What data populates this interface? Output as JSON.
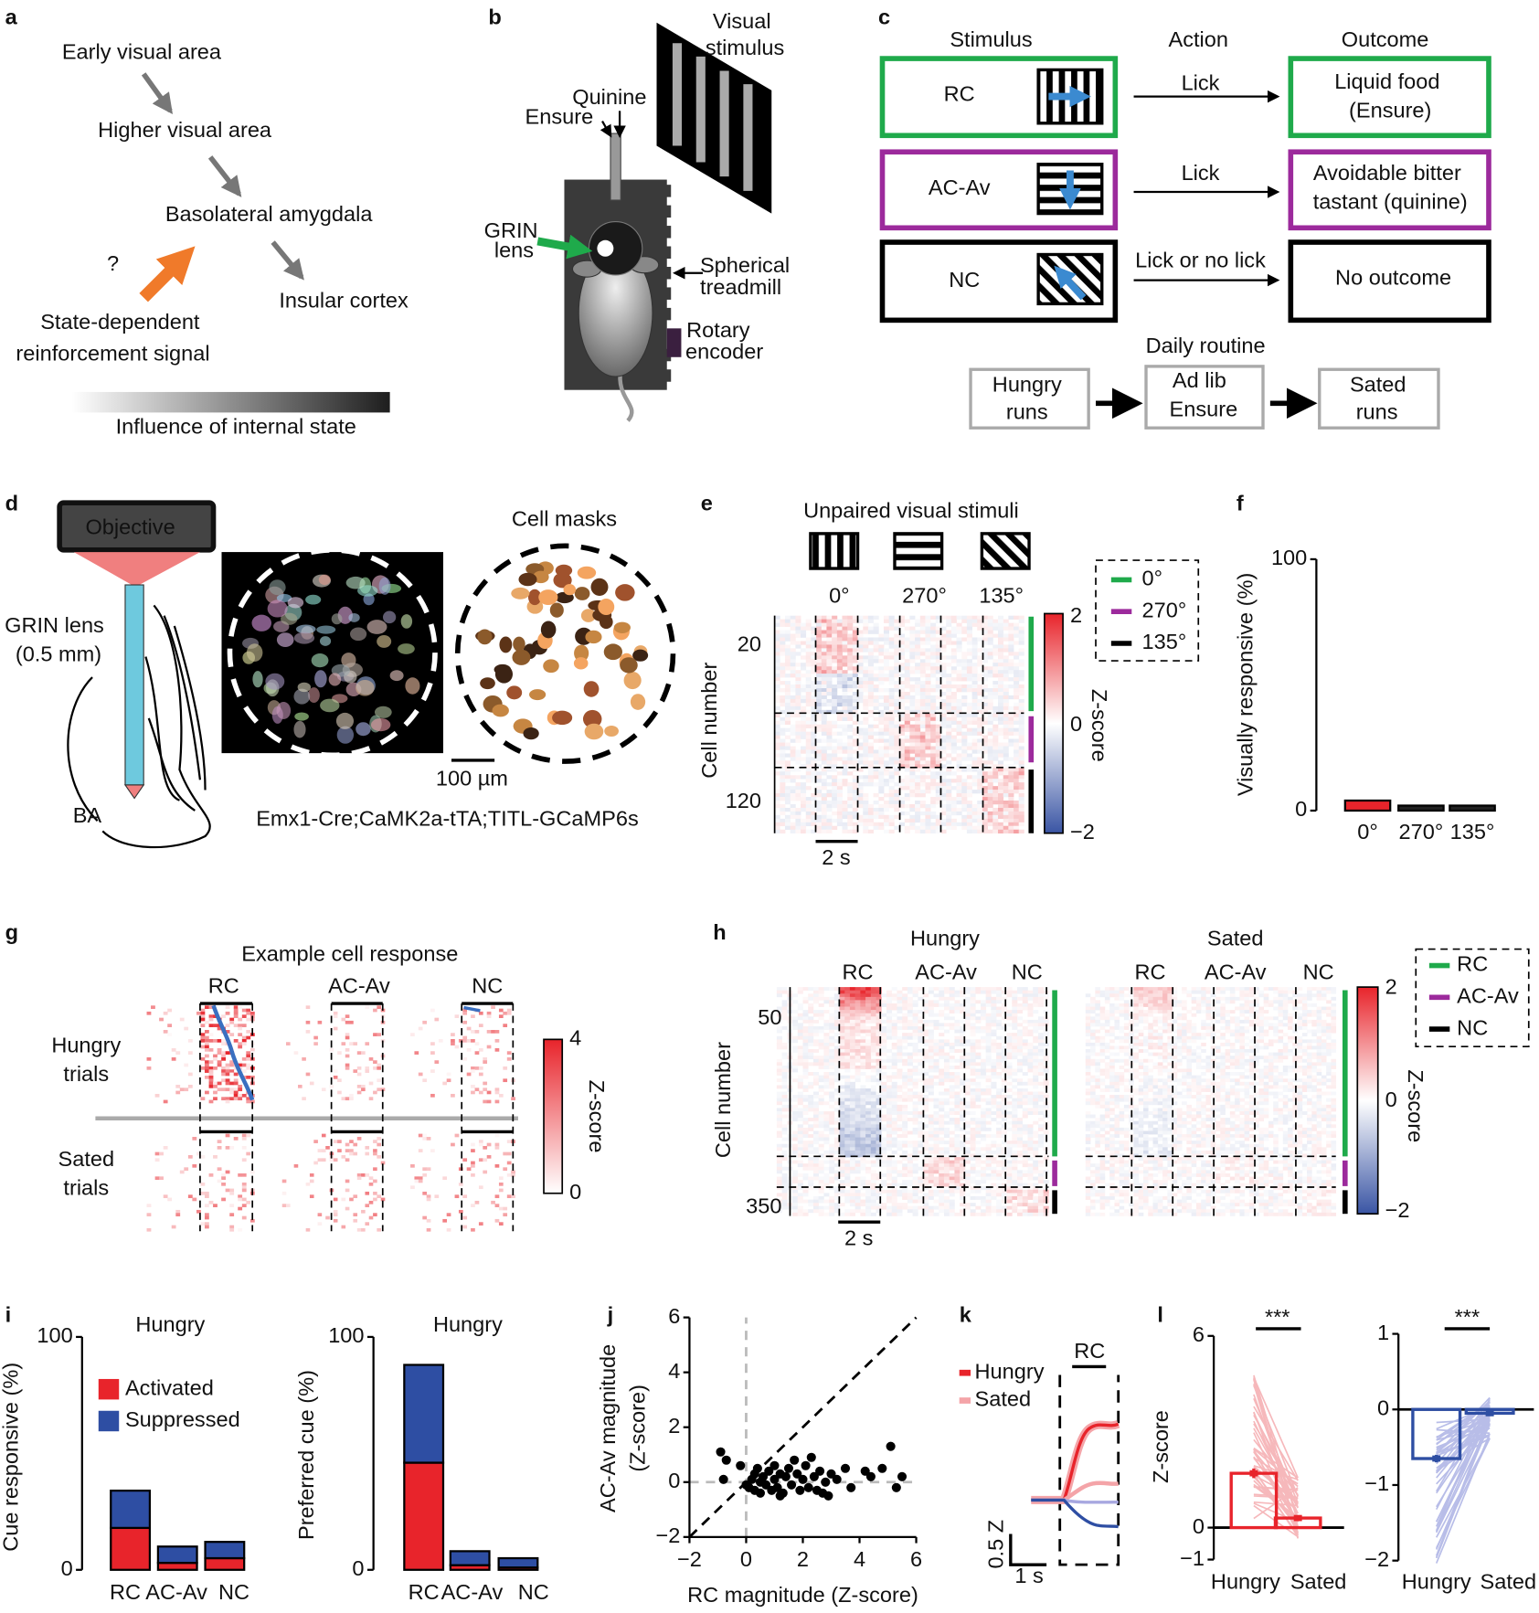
{
  "labels": [
    "a",
    "b",
    "c",
    "d",
    "e",
    "f",
    "g",
    "h",
    "i",
    "j",
    "k",
    "l"
  ],
  "a": {
    "early": "Early visual area",
    "higher": "Higher visual area",
    "bla": "Basolateral amygdala",
    "insular": "Insular cortex",
    "question": "?",
    "signal": [
      "State-dependent",
      "reinforcement signal"
    ],
    "gradient": "Influence of internal state"
  },
  "b": {
    "stimulus": [
      "Visual",
      "stimulus"
    ],
    "quinine": "Quinine",
    "ensure": "Ensure",
    "grin": [
      "GRIN",
      "lens"
    ],
    "treadmill": [
      "Spherical",
      "treadmill"
    ],
    "encoder": [
      "Rotary",
      "encoder"
    ]
  },
  "c": {
    "headers": [
      "Stimulus",
      "Action",
      "Outcome"
    ],
    "rows": [
      {
        "stimulus": "RC",
        "action": "Lick",
        "outcome": [
          "Liquid food",
          "(Ensure)"
        ]
      },
      {
        "stimulus": "AC-Av",
        "action": "Lick",
        "outcome": [
          "Avoidable bitter",
          "tastant (quinine)"
        ]
      },
      {
        "stimulus": "NC",
        "action": "Lick or no lick",
        "outcome": [
          "No outcome"
        ]
      }
    ],
    "routine_title": "Daily routine",
    "routine": [
      [
        "Hungry",
        "runs"
      ],
      [
        "Ad lib",
        "Ensure"
      ],
      [
        "Sated",
        "runs"
      ]
    ]
  },
  "d": {
    "objective": "Objective",
    "lens": [
      "GRIN lens",
      "(0.5 mm)"
    ],
    "region": "BA",
    "masks": "Cell masks",
    "scale": "100 µm",
    "genotype": "Emx1-Cre;CaMK2a-tTA;TITL-GCaMP6s"
  },
  "e": {
    "title": "Unpaired visual stimuli",
    "conditions": [
      "0°",
      "270°",
      "135°"
    ],
    "ylabel": "Cell number",
    "yticks": [
      "20",
      "120"
    ],
    "scale": "2 s",
    "legend": [
      "0°",
      "270°",
      "135°"
    ],
    "colorbar_label": "Z-score",
    "colorbar_ticks": [
      "2",
      "0",
      "−2"
    ]
  },
  "g": {
    "title": "Example cell response",
    "conditions": [
      "RC",
      "AC-Av",
      "NC"
    ],
    "rows": [
      [
        "Hungry",
        "trials"
      ],
      [
        "Sated",
        "trials"
      ]
    ],
    "colorbar_label": "Z-score",
    "colorbar_ticks": [
      "4",
      "0"
    ]
  },
  "h": {
    "groups": [
      "Hungry",
      "Sated"
    ],
    "conditions": [
      "RC",
      "AC-Av",
      "NC"
    ],
    "ylabel": "Cell number",
    "yticks": [
      "50",
      "350"
    ],
    "scale": "2 s",
    "legend": [
      "RC",
      "AC-Av",
      "NC"
    ],
    "colorbar_label": "Z-score",
    "colorbar_ticks": [
      "2",
      "0",
      "−2"
    ]
  },
  "k": {
    "legend": [
      "Hungry",
      "Sated"
    ],
    "cue": "RC",
    "scale_y": "0.5 Z",
    "scale_x": "1 s"
  },
  "chart_data": [
    {
      "type": "bar",
      "ylabel": "Visually responsive (%)",
      "categories": [
        "0°",
        "270°",
        "135°"
      ],
      "values": [
        4,
        2,
        2
      ],
      "colors": [
        "#e8242b",
        "#222222",
        "#222222"
      ],
      "ylim": [
        0,
        100
      ],
      "yticks": [
        0,
        100
      ]
    },
    {
      "type": "stacked_bar",
      "title": "Hungry",
      "ylabel": "Cue responsive (%)",
      "categories": [
        "RC",
        "AC-Av",
        "NC"
      ],
      "series": [
        {
          "name": "Activated",
          "color": "#e8242b",
          "values": [
            18,
            3,
            5
          ]
        },
        {
          "name": "Suppressed",
          "color": "#2e4ea3",
          "values": [
            16,
            7,
            7
          ]
        }
      ],
      "ylim": [
        0,
        100
      ],
      "yticks": [
        0,
        100
      ],
      "legend": "upper right"
    },
    {
      "type": "stacked_bar",
      "title": "Hungry",
      "ylabel": "Preferred cue (%)",
      "categories": [
        "RC",
        "AC-Av",
        "NC"
      ],
      "series": [
        {
          "color": "#e8242b",
          "values": [
            46,
            2,
            1
          ]
        },
        {
          "color": "#2e4ea3",
          "values": [
            42,
            6,
            4
          ]
        }
      ],
      "ylim": [
        0,
        100
      ],
      "yticks": [
        0,
        100
      ]
    },
    {
      "type": "scatter",
      "xlabel": "RC magnitude (Z-score)",
      "ylabel": [
        "AC-Av magnitude",
        "(Z-score)"
      ],
      "x": [
        -0.9,
        -0.7,
        -0.8,
        -0.2,
        0.1,
        0.2,
        0.3,
        0.3,
        0.5,
        0.5,
        0.6,
        0.7,
        0.8,
        0.9,
        1.0,
        1.0,
        1.1,
        1.2,
        1.3,
        1.4,
        1.5,
        1.6,
        1.7,
        1.8,
        1.9,
        2.0,
        2.1,
        2.2,
        2.3,
        2.4,
        2.5,
        2.6,
        2.8,
        2.9,
        3.0,
        3.2,
        3.5,
        3.7,
        4.2,
        4.4,
        4.8,
        5.1,
        5.3,
        5.5,
        0.0,
        0.4,
        1.2,
        2.7
      ],
      "values": [
        1.1,
        0.8,
        0.1,
        0.6,
        -0.2,
        0.1,
        -0.3,
        0.3,
        0.0,
        -0.4,
        0.2,
        -0.1,
        0.4,
        -0.3,
        0.1,
        0.6,
        -0.2,
        0.3,
        -0.4,
        0.2,
        0.5,
        -0.1,
        0.8,
        0.3,
        -0.3,
        0.1,
        0.6,
        -0.2,
        0.9,
        0.2,
        -0.3,
        0.4,
        0.0,
        -0.5,
        0.3,
        0.1,
        0.5,
        -0.2,
        0.4,
        0.2,
        0.5,
        1.3,
        -0.2,
        0.2,
        -0.1,
        0.5,
        -0.5,
        -0.4
      ],
      "color": "#000000",
      "xlim": [
        -2,
        6
      ],
      "ylim": [
        -2,
        6
      ],
      "xticks": [
        {
          "value": -2,
          "label": "−2"
        },
        0,
        2,
        4,
        6
      ],
      "yticks": [
        {
          "value": -2,
          "label": "−2"
        },
        0,
        2,
        4,
        6
      ],
      "identity_line": true,
      "zero_lines": true
    },
    {
      "type": "bar",
      "title": "***",
      "ylabel": "Z-score",
      "categories": [
        "Hungry",
        "Sated"
      ],
      "values": [
        1.7,
        0.3
      ],
      "errors": [
        0.15,
        0.08
      ],
      "color": "#e8242b",
      "outline": true,
      "ylim": [
        -1,
        6
      ],
      "yticks": [
        {
          "value": -1,
          "label": "−1"
        },
        0,
        6
      ]
    },
    {
      "type": "bar",
      "title": "***",
      "categories": [
        "Hungry",
        "Sated"
      ],
      "values": [
        -0.65,
        -0.05
      ],
      "errors": [
        0.05,
        0.03
      ],
      "color": "#2e4ea3",
      "outline": true,
      "ylim": [
        -2,
        1
      ],
      "yticks": [
        {
          "value": -2,
          "label": "−2"
        },
        {
          "value": -1,
          "label": "−1"
        },
        0,
        1
      ]
    }
  ]
}
